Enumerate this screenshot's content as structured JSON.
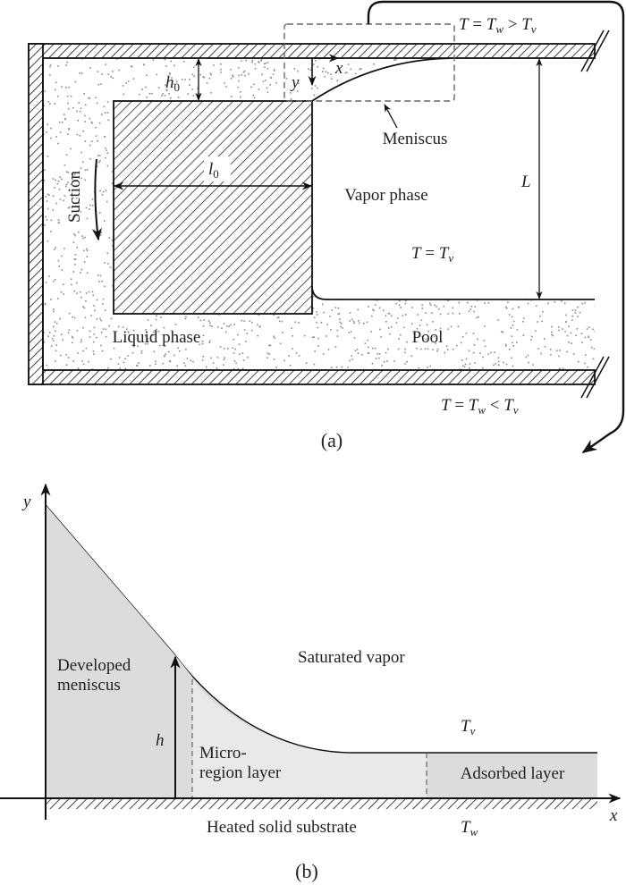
{
  "panel_a": {
    "caption": "(a)",
    "temp_top": {
      "t1": "T",
      "eq": " = ",
      "t2": "T",
      "s2": "w",
      "op": " > ",
      "t3": "T",
      "s3": "v"
    },
    "temp_bottom": {
      "t1": "T",
      "eq": " = ",
      "t2": "T",
      "s2": "w",
      "op": " < ",
      "t3": "T",
      "s3": "v"
    },
    "temp_vapor": {
      "t1": "T",
      "eq": " = ",
      "t2": "T",
      "s2": "v"
    },
    "h0": {
      "base": "h",
      "sub": "0"
    },
    "l0": {
      "base": "l",
      "sub": "0"
    },
    "L": "L",
    "x_axis": "x",
    "y_axis": "y",
    "suction": "Suction",
    "meniscus": "Meniscus",
    "vapor_phase": "Vapor phase",
    "liquid_phase": "Liquid phase",
    "pool": "Pool"
  },
  "panel_b": {
    "caption": "(b)",
    "x_axis": "x",
    "y_axis": "y",
    "h": "h",
    "developed_1": "Developed",
    "developed_2": "meniscus",
    "saturated_vapor": "Saturated vapor",
    "tv": {
      "base": "T",
      "sub": "v"
    },
    "micro_1": "Micro-",
    "micro_2": "region layer",
    "adsorbed": "Adsorbed layer",
    "substrate": "Heated solid substrate",
    "tw": {
      "base": "T",
      "sub": "w"
    }
  },
  "colors": {
    "line": "#111111",
    "dots": "#8a8a8a",
    "developed_fill": "#dcdcdc",
    "micro_fill": "#e9e9e9",
    "adsorbed_fill": "#dcdcdc",
    "dashed": "#666666"
  }
}
